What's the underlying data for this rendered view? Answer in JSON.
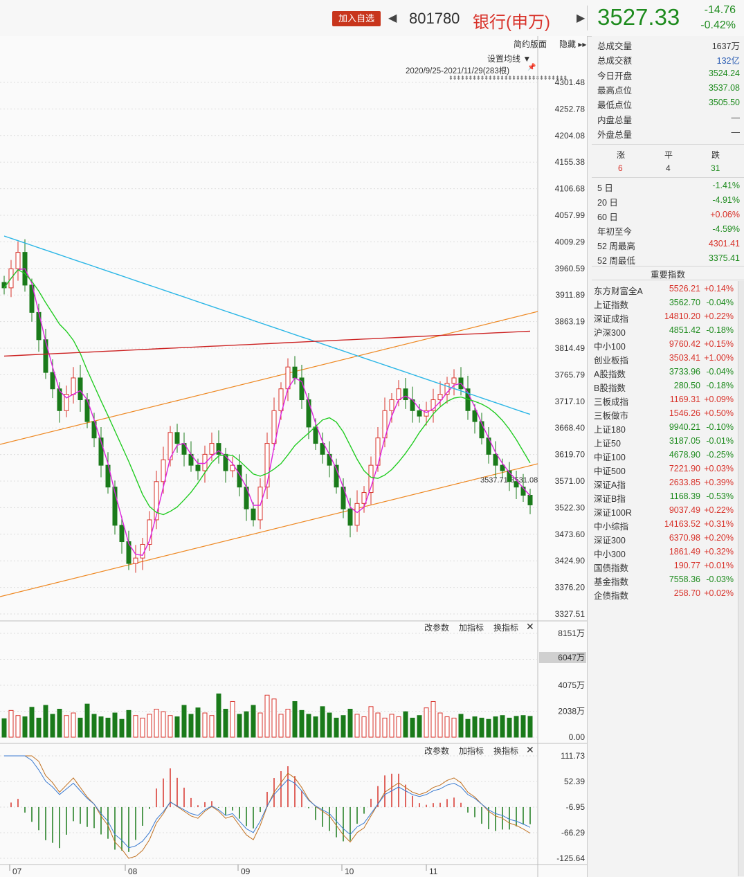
{
  "header": {
    "add_watchlist": "加入自选",
    "prev_arrow": "◀",
    "next_arrow": "▶",
    "code": "801780",
    "name": "银行(申万)",
    "price": "3527.33",
    "change": "-14.76",
    "change_pct": "-0.42%"
  },
  "toolbar": {
    "simple": "简约版面",
    "hide": "隐藏 ▸▸",
    "ma_setting": "设置均线 ▼",
    "range": "2020/9/25-2021/11/29(283根)",
    "range_dots": "⇟⇟⇟⇟⇟⇟⇟⇟⇟⇟⇟⇟⇟⇟⇟⇟⇟⇟⇟⇟⇟⇟⇟⇟⇟⇟⇟⇟⇟⇟",
    "pin": "📌",
    "params": "改参数",
    "add_ind": "加指标",
    "switch_ind": "换指标",
    "close": "✕"
  },
  "chart_data": [
    {
      "type": "candlestick",
      "price_axis_ticks": [
        "4301.48",
        "4252.78",
        "4204.08",
        "4155.38",
        "4106.68",
        "4057.99",
        "4009.29",
        "3960.59",
        "3911.89",
        "3863.19",
        "3814.49",
        "3765.79",
        "3717.10",
        "3668.40",
        "3619.70",
        "3571.00",
        "3522.30",
        "3473.60",
        "3424.90",
        "3376.20",
        "3327.51"
      ],
      "ylim": [
        3327.51,
        4301.48
      ],
      "x_labels": [
        "07",
        "08",
        "09",
        "10",
        "11"
      ],
      "trendline_label": "3537.71-3531.08",
      "closes": [
        3925,
        3960,
        3990,
        3930,
        3880,
        3830,
        3770,
        3740,
        3700,
        3730,
        3760,
        3720,
        3680,
        3650,
        3600,
        3560,
        3490,
        3460,
        3420,
        3430,
        3455,
        3500,
        3570,
        3610,
        3660,
        3640,
        3620,
        3600,
        3590,
        3620,
        3640,
        3620,
        3590,
        3600,
        3560,
        3520,
        3500,
        3560,
        3640,
        3700,
        3740,
        3780,
        3760,
        3720,
        3670,
        3640,
        3620,
        3600,
        3560,
        3520,
        3490,
        3530,
        3550,
        3600,
        3650,
        3700,
        3720,
        3740,
        3720,
        3700,
        3690,
        3700,
        3720,
        3730,
        3750,
        3760,
        3740,
        3700,
        3680,
        3650,
        3620,
        3600,
        3590,
        3570,
        3560,
        3545,
        3527.33
      ],
      "ma_series": [
        {
          "name": "MA5",
          "color": "#dd22dd"
        },
        {
          "name": "MA20",
          "color": "#22cc22"
        },
        {
          "name": "MA60",
          "color": "#2bb6e6"
        },
        {
          "name": "MA120",
          "color": "#cc2222"
        }
      ]
    },
    {
      "type": "bar",
      "name": "volume",
      "axis_ticks": [
        "8151万",
        "6047万",
        "4075万",
        "2038万",
        "0.00"
      ],
      "current_label": "6047万",
      "ylim": [
        0,
        8151
      ],
      "values": [
        1450,
        2100,
        1700,
        1600,
        2350,
        1500,
        2500,
        1800,
        2200,
        1700,
        1900,
        1500,
        2600,
        1800,
        1600,
        1500,
        1900,
        1400,
        2100,
        1700,
        1500,
        1800,
        2200,
        2000,
        1700,
        1600,
        2500,
        1800,
        2300,
        1900,
        1700,
        3400,
        2200,
        2800,
        1800,
        2000,
        2500,
        1900,
        3300,
        3000,
        1800,
        2200,
        2800,
        2100,
        1800,
        1600,
        2400,
        1900,
        1500,
        1700,
        2200,
        1800,
        1600,
        2400,
        1900,
        1500,
        1800,
        1600,
        2000,
        1500,
        1700,
        2300,
        2800,
        1900,
        1600,
        1500,
        1800,
        1400,
        1600,
        1500,
        1400,
        1600,
        1700,
        1500,
        1637,
        1700,
        1637
      ]
    },
    {
      "type": "bar",
      "name": "macd",
      "axis_ticks": [
        "111.73",
        "52.39",
        "-6.95",
        "-66.29",
        "-125.64"
      ],
      "ylim": [
        -125.64,
        111.73
      ]
    }
  ],
  "panel": {
    "stats": [
      {
        "label": "总成交量",
        "value": "1637万",
        "cls": "dark"
      },
      {
        "label": "总成交额",
        "value": "132亿",
        "cls": "blue"
      },
      {
        "label": "今日开盘",
        "value": "3524.24",
        "cls": "green"
      },
      {
        "label": "最高点位",
        "value": "3537.08",
        "cls": "green"
      },
      {
        "label": "最低点位",
        "value": "3505.50",
        "cls": "green"
      },
      {
        "label": "内盘总量",
        "value": "—",
        "cls": "dark"
      },
      {
        "label": "外盘总量",
        "value": "—",
        "cls": "dark"
      }
    ],
    "breadth": {
      "up_label": "涨",
      "flat_label": "平",
      "down_label": "跌",
      "up": "6",
      "flat": "4",
      "down": "31"
    },
    "perf": [
      {
        "label": "5 日",
        "value": "-1.41%",
        "cls": "green"
      },
      {
        "label": "20 日",
        "value": "-4.91%",
        "cls": "green"
      },
      {
        "label": "60 日",
        "value": "+0.06%",
        "cls": "red"
      },
      {
        "label": "年初至今",
        "value": "-4.59%",
        "cls": "green"
      },
      {
        "label": "52 周最高",
        "value": "4301.41",
        "cls": "red"
      },
      {
        "label": "52 周最低",
        "value": "3375.41",
        "cls": "green"
      }
    ],
    "indices_title": "重要指数",
    "indices": [
      {
        "name": "东方财富全A",
        "pt": "5526.21",
        "pc": "+0.14%",
        "up": true
      },
      {
        "name": "上证指数",
        "pt": "3562.70",
        "pc": "-0.04%",
        "up": false
      },
      {
        "name": "深证成指",
        "pt": "14810.20",
        "pc": "+0.22%",
        "up": true
      },
      {
        "name": "沪深300",
        "pt": "4851.42",
        "pc": "-0.18%",
        "up": false
      },
      {
        "name": "中小100",
        "pt": "9760.42",
        "pc": "+0.15%",
        "up": true
      },
      {
        "name": "创业板指",
        "pt": "3503.41",
        "pc": "+1.00%",
        "up": true
      },
      {
        "name": "A股指数",
        "pt": "3733.96",
        "pc": "-0.04%",
        "up": false
      },
      {
        "name": "B股指数",
        "pt": "280.50",
        "pc": "-0.18%",
        "up": false
      },
      {
        "name": "三板成指",
        "pt": "1169.31",
        "pc": "+0.09%",
        "up": true
      },
      {
        "name": "三板做市",
        "pt": "1546.26",
        "pc": "+0.50%",
        "up": true
      },
      {
        "name": "上证180",
        "pt": "9940.21",
        "pc": "-0.10%",
        "up": false
      },
      {
        "name": "上证50",
        "pt": "3187.05",
        "pc": "-0.01%",
        "up": false
      },
      {
        "name": "中证100",
        "pt": "4678.90",
        "pc": "-0.25%",
        "up": false
      },
      {
        "name": "中证500",
        "pt": "7221.90",
        "pc": "+0.03%",
        "up": true
      },
      {
        "name": "深证A指",
        "pt": "2633.85",
        "pc": "+0.39%",
        "up": true
      },
      {
        "name": "深证B指",
        "pt": "1168.39",
        "pc": "-0.53%",
        "up": false
      },
      {
        "name": "深证100R",
        "pt": "9037.49",
        "pc": "+0.22%",
        "up": true
      },
      {
        "name": "中小综指",
        "pt": "14163.52",
        "pc": "+0.31%",
        "up": true
      },
      {
        "name": "深证300",
        "pt": "6370.98",
        "pc": "+0.20%",
        "up": true
      },
      {
        "name": "中小300",
        "pt": "1861.49",
        "pc": "+0.32%",
        "up": true
      },
      {
        "name": "国债指数",
        "pt": "190.77",
        "pc": "+0.01%",
        "up": true
      },
      {
        "name": "基金指数",
        "pt": "7558.36",
        "pc": "-0.03%",
        "up": false
      },
      {
        "name": "企债指数",
        "pt": "258.70",
        "pc": "+0.02%",
        "up": true
      }
    ]
  }
}
